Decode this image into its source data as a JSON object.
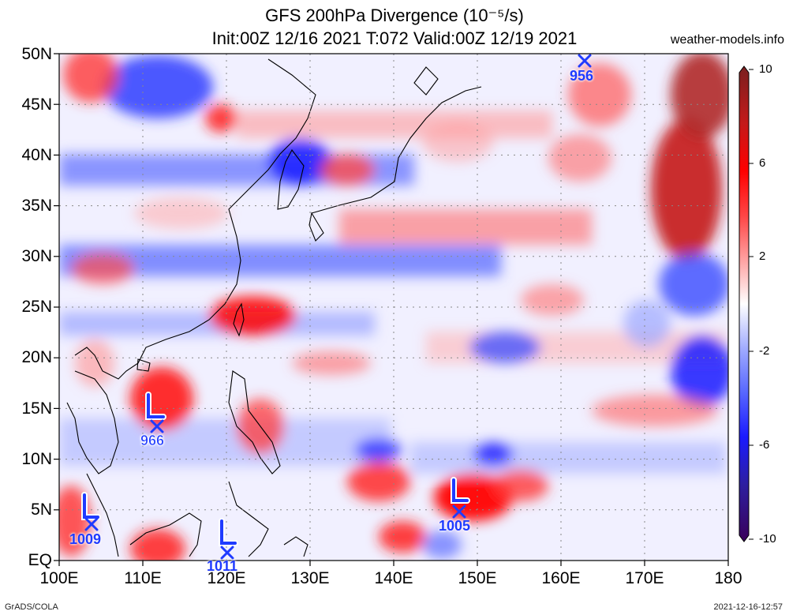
{
  "title": {
    "line1": "GFS 200hPa Divergence (10⁻⁵/s)",
    "line2": "Init:00Z 12/16 2021 T:072 Valid:00Z 12/19 2021"
  },
  "site": "weather-models.info",
  "lat_labels": [
    "50N",
    "45N",
    "40N",
    "35N",
    "30N",
    "25N",
    "20N",
    "15N",
    "10N",
    "5N",
    "EQ"
  ],
  "lon_labels": [
    "100E",
    "110E",
    "120E",
    "130E",
    "140E",
    "150E",
    "160E",
    "170E",
    "180"
  ],
  "colorbar": {
    "ticks": [
      "10",
      "6",
      "2",
      "-2",
      "-6",
      "-10"
    ],
    "colors": [
      "#3a005a",
      "#2d1fa0",
      "#1a1aff",
      "#5c6cff",
      "#9ba6ff",
      "#d6dbff",
      "#ffffff",
      "#ffd6d6",
      "#ff9a9a",
      "#ff4a4a",
      "#ff0000",
      "#c41a1a",
      "#7a2020"
    ]
  },
  "lows": [
    {
      "pressure": "966"
    },
    {
      "pressure": "1009"
    },
    {
      "pressure": "1011"
    },
    {
      "pressure": "1005"
    },
    {
      "pressure": "956"
    }
  ],
  "footer": {
    "left": "GrADS/COLA",
    "right": "2021-12-16-12:57"
  },
  "colors": {
    "low_marker": "#1f3bff",
    "positive": "#ff0000",
    "negative": "#1a1aff"
  }
}
